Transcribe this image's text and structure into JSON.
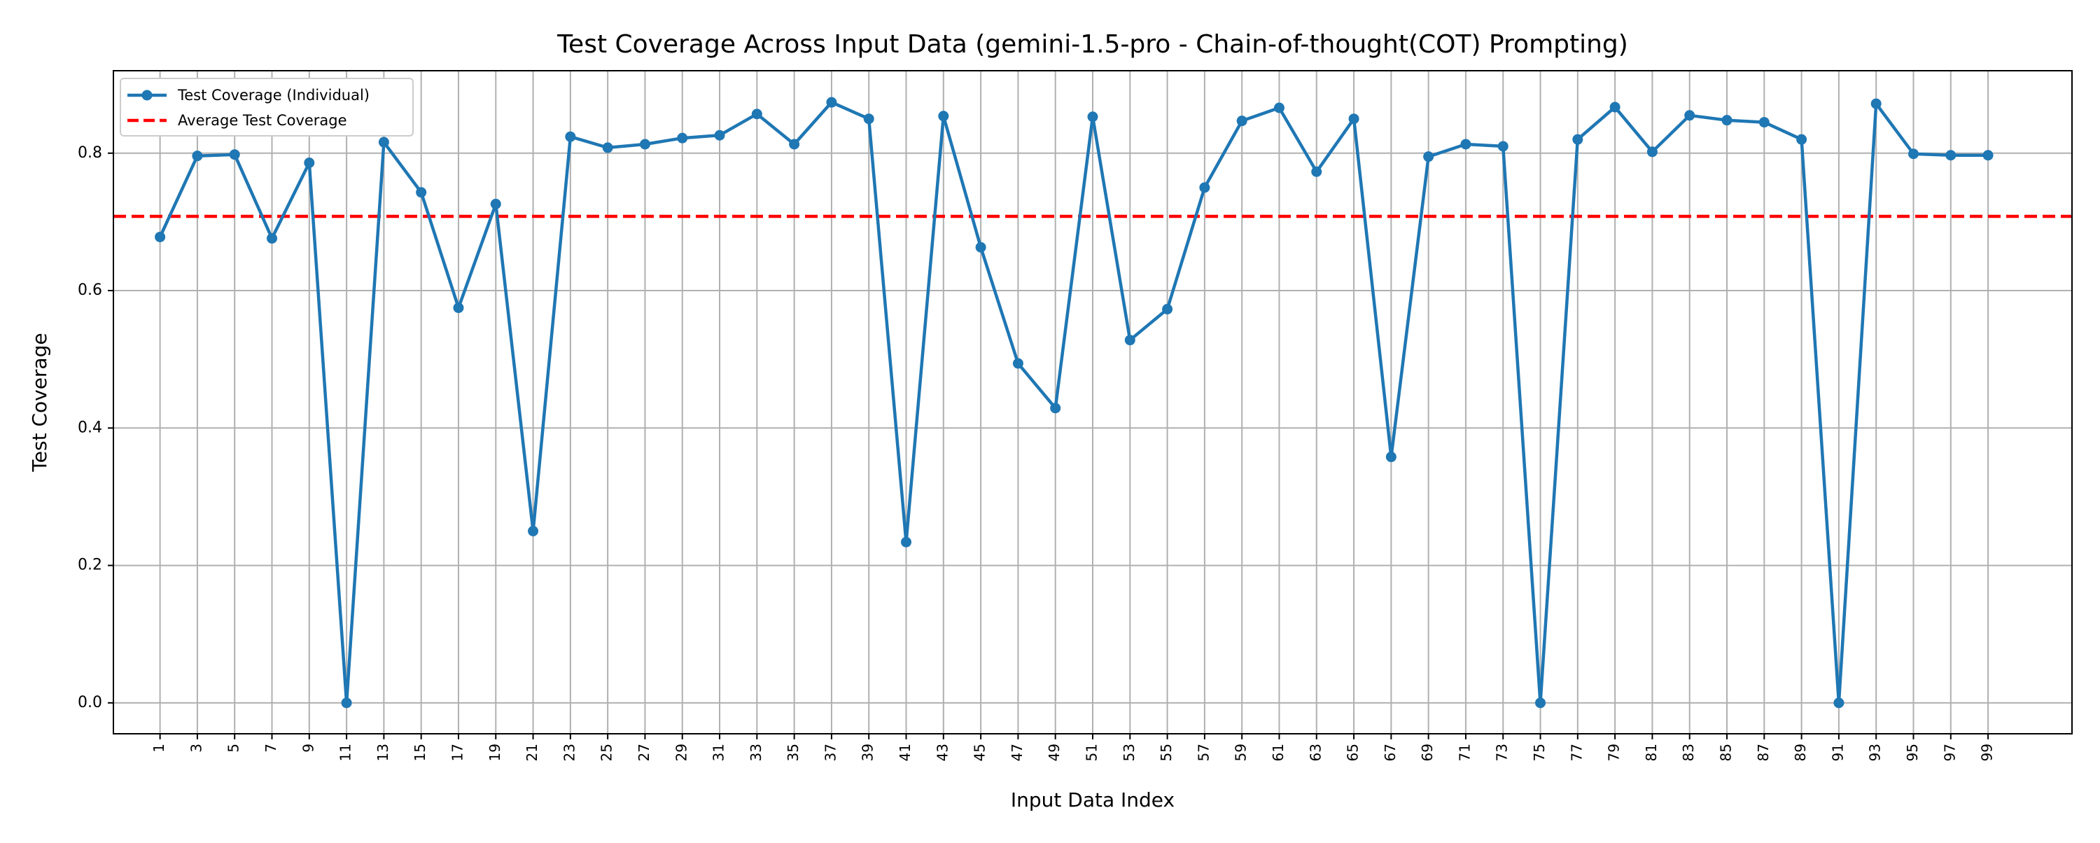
{
  "chart_data": {
    "type": "line",
    "title": "Test Coverage Across Input Data (gemini-1.5-pro - Chain-of-thought(COT) Prompting)",
    "xlabel": "Input Data Index",
    "ylabel": "Test Coverage",
    "xlim": [
      -1.5,
      103.5
    ],
    "ylim": [
      -0.045,
      0.92
    ],
    "x_ticks": [
      1,
      3,
      5,
      7,
      9,
      11,
      13,
      15,
      17,
      19,
      21,
      23,
      25,
      27,
      29,
      31,
      33,
      35,
      37,
      39,
      41,
      43,
      45,
      47,
      49,
      51,
      53,
      55,
      57,
      59,
      61,
      63,
      65,
      67,
      69,
      71,
      73,
      75,
      77,
      79,
      81,
      83,
      85,
      87,
      89,
      91,
      93,
      95,
      97,
      99
    ],
    "x_tick_labels": [
      "1",
      "3",
      "5",
      "7",
      "9",
      "11",
      "13",
      "15",
      "17",
      "19",
      "21",
      "23",
      "25",
      "27",
      "29",
      "31",
      "33",
      "35",
      "37",
      "39",
      "41",
      "43",
      "45",
      "47",
      "49",
      "51",
      "53",
      "55",
      "57",
      "59",
      "61",
      "63",
      "65",
      "67",
      "69",
      "71",
      "73",
      "75",
      "77",
      "79",
      "81",
      "83",
      "85",
      "87",
      "89",
      "91",
      "93",
      "95",
      "97",
      "99"
    ],
    "y_ticks": [
      0.0,
      0.2,
      0.4,
      0.6,
      0.8
    ],
    "y_tick_labels": [
      "0.0",
      "0.2",
      "0.4",
      "0.6",
      "0.8"
    ],
    "grid": true,
    "legend_position": "upper left",
    "series": [
      {
        "name": "Test Coverage (Individual)",
        "color": "#1f77b4",
        "style": "solid-with-markers",
        "x": [
          1,
          3,
          5,
          7,
          9,
          11,
          13,
          15,
          17,
          19,
          21,
          23,
          25,
          27,
          29,
          31,
          33,
          35,
          37,
          39,
          41,
          43,
          45,
          47,
          49,
          51,
          53,
          55,
          57,
          59,
          61,
          63,
          65,
          67,
          69,
          71,
          73,
          75,
          77,
          79,
          81,
          83,
          85,
          87,
          89,
          91,
          93,
          95,
          97,
          99
        ],
        "values": [
          0.678,
          0.796,
          0.798,
          0.676,
          0.786,
          0.0,
          0.816,
          0.743,
          0.575,
          0.726,
          0.25,
          0.824,
          0.808,
          0.813,
          0.822,
          0.826,
          0.857,
          0.813,
          0.874,
          0.85,
          0.234,
          0.854,
          0.663,
          0.494,
          0.429,
          0.853,
          0.528,
          0.573,
          0.75,
          0.847,
          0.866,
          0.773,
          0.85,
          0.358,
          0.795,
          0.813,
          0.81,
          0.0,
          0.82,
          0.867,
          0.802,
          0.855,
          0.848,
          0.845,
          0.82,
          0.0,
          0.872,
          0.799,
          0.797,
          0.797
        ]
      },
      {
        "name": "Average Test Coverage",
        "color": "#ff0000",
        "style": "dashed-horizontal",
        "value": 0.708
      }
    ]
  }
}
